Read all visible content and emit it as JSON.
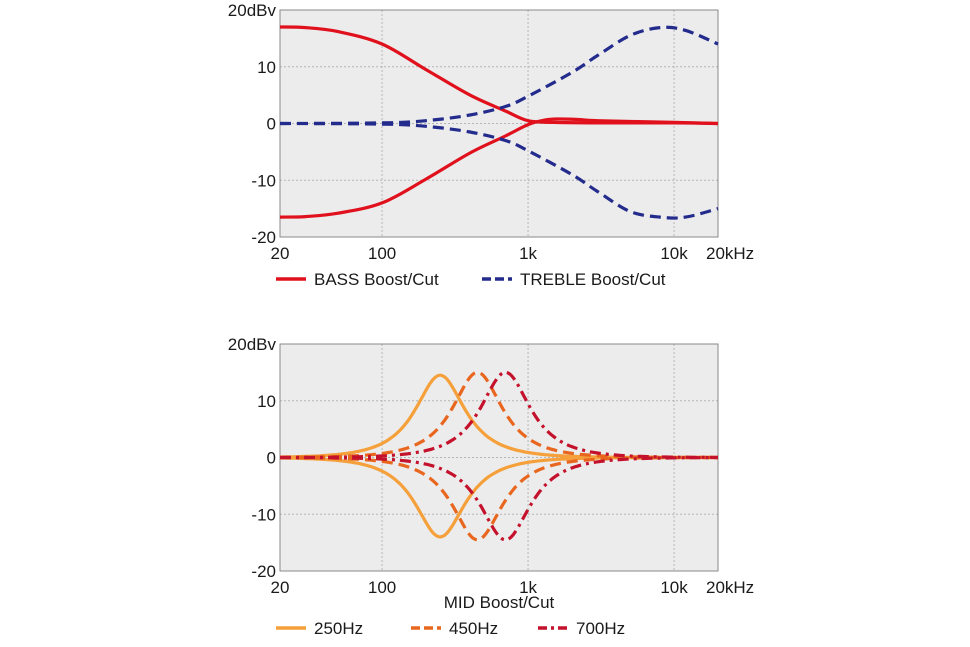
{
  "chart_data": [
    {
      "type": "line",
      "xscale": "log",
      "xlim": [
        20,
        20000
      ],
      "ylim": [
        -20,
        20
      ],
      "x_ticks": [
        {
          "value": 20,
          "label": "20"
        },
        {
          "value": 100,
          "label": "100"
        },
        {
          "value": 1000,
          "label": "1k"
        },
        {
          "value": 10000,
          "label": "10k"
        },
        {
          "value": 20000,
          "label": "20kHz"
        }
      ],
      "y_ticks": [
        {
          "value": 20,
          "label": "20dBv"
        },
        {
          "value": 10,
          "label": "10"
        },
        {
          "value": 0,
          "label": "0"
        },
        {
          "value": -10,
          "label": "-10"
        },
        {
          "value": -20,
          "label": "-20"
        }
      ],
      "grid": true,
      "xlabel": "",
      "legend": [
        {
          "label": "BASS Boost/Cut",
          "color": "#e0101c",
          "dash": "solid"
        },
        {
          "label": "TREBLE Boost/Cut",
          "color": "#232b8c",
          "dash": "dashed"
        }
      ],
      "series": [
        {
          "group": "BASS Boost/Cut",
          "color": "#e0101c",
          "dash": "solid",
          "x": [
            20,
            30,
            50,
            100,
            200,
            400,
            700,
            1000,
            1500,
            3000,
            10000,
            20000
          ],
          "y": [
            17,
            16.9,
            16.2,
            14,
            9.5,
            5,
            2.2,
            0.5,
            0.2,
            0.1,
            0.1,
            0
          ]
        },
        {
          "group": "BASS Boost/Cut",
          "color": "#e0101c",
          "dash": "solid",
          "x": [
            20,
            30,
            50,
            100,
            200,
            400,
            700,
            1000,
            1300,
            1600,
            2200,
            3000,
            10000,
            20000
          ],
          "y": [
            -16.5,
            -16.4,
            -15.8,
            -14,
            -9.8,
            -5.2,
            -2.2,
            -0.2,
            0.6,
            0.8,
            0.7,
            0.5,
            0.2,
            0
          ]
        },
        {
          "group": "TREBLE Boost/Cut",
          "color": "#232b8c",
          "dash": "dashed",
          "x": [
            20,
            100,
            200,
            400,
            700,
            1000,
            2000,
            3000,
            5000,
            8000,
            12000,
            20000
          ],
          "y": [
            0,
            0.1,
            0.5,
            1.5,
            3,
            4.8,
            9,
            12,
            15.5,
            16.9,
            16.4,
            14
          ]
        },
        {
          "group": "TREBLE Boost/Cut",
          "color": "#232b8c",
          "dash": "dashed",
          "x": [
            20,
            100,
            200,
            400,
            700,
            1000,
            2000,
            3000,
            5000,
            8000,
            12000,
            20000
          ],
          "y": [
            0,
            -0.1,
            -0.5,
            -1.5,
            -3,
            -4.8,
            -9,
            -12,
            -15.5,
            -16.5,
            -16.5,
            -15
          ]
        }
      ]
    },
    {
      "type": "line",
      "xscale": "log",
      "xlim": [
        20,
        20000
      ],
      "ylim": [
        -20,
        20
      ],
      "x_ticks": [
        {
          "value": 20,
          "label": "20"
        },
        {
          "value": 100,
          "label": "100"
        },
        {
          "value": 1000,
          "label": "1k"
        },
        {
          "value": 10000,
          "label": "10k"
        },
        {
          "value": 20000,
          "label": "20kHz"
        }
      ],
      "y_ticks": [
        {
          "value": 20,
          "label": "20dBv"
        },
        {
          "value": 10,
          "label": "10"
        },
        {
          "value": 0,
          "label": "0"
        },
        {
          "value": -10,
          "label": "-10"
        },
        {
          "value": -20,
          "label": "-20"
        }
      ],
      "grid": true,
      "xlabel": "MID Boost/Cut",
      "legend": [
        {
          "label": "250Hz",
          "color": "#f5a03a",
          "dash": "solid"
        },
        {
          "label": "450Hz",
          "color": "#e8661e",
          "dash": "dashed"
        },
        {
          "label": "700Hz",
          "color": "#c4122c",
          "dash": "dashdot"
        }
      ],
      "series": [
        {
          "group": "250Hz",
          "color": "#f5a03a",
          "dash": "solid",
          "center": 250,
          "peak": 14.5
        },
        {
          "group": "250Hz",
          "color": "#f5a03a",
          "dash": "solid",
          "center": 250,
          "peak": -14
        },
        {
          "group": "450Hz",
          "color": "#e8661e",
          "dash": "dashed",
          "center": 450,
          "peak": 15
        },
        {
          "group": "450Hz",
          "color": "#e8661e",
          "dash": "dashed",
          "center": 450,
          "peak": -14.5
        },
        {
          "group": "700Hz",
          "color": "#c4122c",
          "dash": "dashdot",
          "center": 700,
          "peak": 15
        },
        {
          "group": "700Hz",
          "color": "#c4122c",
          "dash": "dashdot",
          "center": 700,
          "peak": -14.5
        }
      ]
    }
  ]
}
